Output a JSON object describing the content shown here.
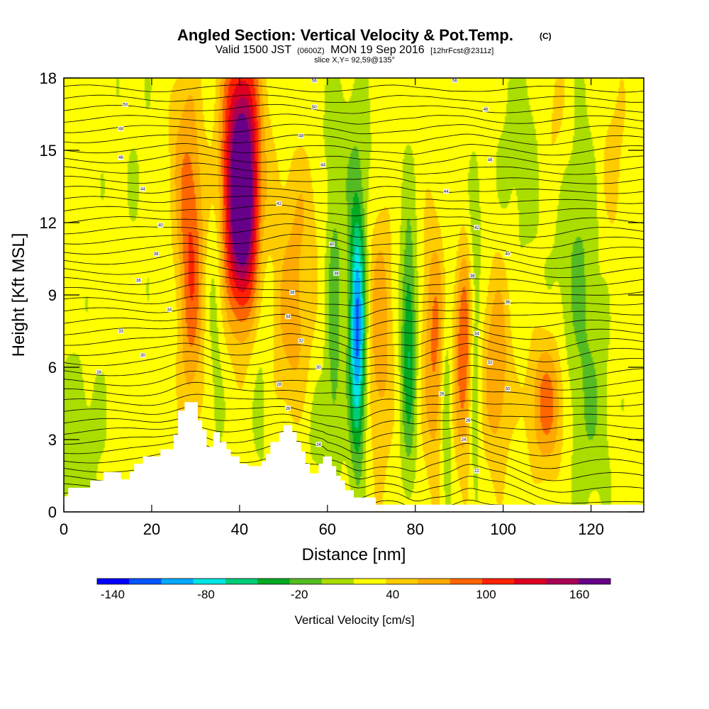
{
  "chart_data": {
    "type": "heatmap",
    "title_main": "Angled Section: Vertical Velocity & Pot.Temp.",
    "title_tag": "(C)",
    "subtitle_a": "Valid 1500 JST",
    "subtitle_utc": "(0600Z)",
    "subtitle_b": "MON 19 Sep 2016",
    "subtitle_fcst": "[12hrFcst@2311z]",
    "slice_label": "slice X,Y= 92,59@135°",
    "xlabel": "Distance [nm]",
    "ylabel": "Height [Kft MSL]",
    "xlim": [
      0,
      132
    ],
    "ylim": [
      0,
      18
    ],
    "x_ticks": [
      0,
      20,
      40,
      60,
      80,
      100,
      120
    ],
    "y_ticks": [
      0,
      3,
      6,
      9,
      12,
      15,
      18
    ],
    "colorbar": {
      "title": "Vertical Velocity [cm/s]",
      "tick_labels": [
        "-140",
        "-80",
        "-20",
        "40",
        "100",
        "160"
      ],
      "tick_values": [
        -140,
        -80,
        -20,
        40,
        100,
        160
      ],
      "range": [
        -150,
        180
      ],
      "colors": [
        "#0000ff",
        "#0055ff",
        "#00aaff",
        "#00e5e5",
        "#00cc77",
        "#00aa22",
        "#55bb22",
        "#aadd00",
        "#ffff00",
        "#ffcc00",
        "#ffaa00",
        "#ff6600",
        "#ff2200",
        "#dd0022",
        "#aa0055",
        "#660088"
      ]
    },
    "velocity_features": [
      {
        "x": 40.5,
        "y": 14.5,
        "sx": 3.2,
        "sy": 3.5,
        "w": 160
      },
      {
        "x": 40.5,
        "y": 11.0,
        "sx": 2.5,
        "sy": 2.5,
        "w": 70
      },
      {
        "x": 29.0,
        "y": 10.5,
        "sx": 2.0,
        "sy": 4.5,
        "w": 75
      },
      {
        "x": 34.5,
        "y": 9.0,
        "sx": 1.3,
        "sy": 5.0,
        "w": -18
      },
      {
        "x": 45.0,
        "y": 9.0,
        "sx": 1.6,
        "sy": 6.0,
        "w": -15
      },
      {
        "x": 52.0,
        "y": 8.0,
        "sx": 3.0,
        "sy": 3.0,
        "w": 45
      },
      {
        "x": 61.5,
        "y": 8.0,
        "sx": 1.3,
        "sy": 4.0,
        "w": -40
      },
      {
        "x": 66.8,
        "y": 7.5,
        "sx": 1.3,
        "sy": 3.5,
        "w": -140
      },
      {
        "x": 72.0,
        "y": 7.5,
        "sx": 2.0,
        "sy": 4.0,
        "w": 50
      },
      {
        "x": 78.5,
        "y": 7.0,
        "sx": 1.2,
        "sy": 3.5,
        "w": -70
      },
      {
        "x": 84.5,
        "y": 7.0,
        "sx": 2.0,
        "sy": 4.0,
        "w": 60
      },
      {
        "x": 87.0,
        "y": 4.5,
        "sx": 0.9,
        "sy": 3.0,
        "w": -45
      },
      {
        "x": 91.0,
        "y": 7.0,
        "sx": 1.5,
        "sy": 3.5,
        "w": 75
      },
      {
        "x": 93.5,
        "y": 6.0,
        "sx": 0.9,
        "sy": 4.0,
        "w": -35
      },
      {
        "x": 98.5,
        "y": 6.0,
        "sx": 2.2,
        "sy": 3.0,
        "w": 55
      },
      {
        "x": 110.0,
        "y": 4.5,
        "sx": 3.0,
        "sy": 2.0,
        "w": 65
      },
      {
        "x": 117.0,
        "y": 10.5,
        "sx": 3.5,
        "sy": 5.0,
        "w": -30
      },
      {
        "x": 105.0,
        "y": 15.0,
        "sx": 4.0,
        "sy": 3.0,
        "w": -18
      },
      {
        "x": 112.0,
        "y": 16.0,
        "sx": 3.0,
        "sy": 2.5,
        "w": 25
      },
      {
        "x": 125.0,
        "y": 14.5,
        "sx": 3.0,
        "sy": 3.0,
        "w": 20
      },
      {
        "x": 64.0,
        "y": 14.5,
        "sx": 6.0,
        "sy": 2.5,
        "w": -18
      },
      {
        "x": 55.0,
        "y": 13.0,
        "sx": 4.0,
        "sy": 2.0,
        "w": 25
      },
      {
        "x": 3.0,
        "y": 3.0,
        "sx": 4.0,
        "sy": 2.5,
        "w": -18
      },
      {
        "x": 18.0,
        "y": 14.0,
        "sx": 6.0,
        "sy": 3.0,
        "w": -5
      },
      {
        "x": 26.0,
        "y": 15.0,
        "sx": 2.0,
        "sy": 3.0,
        "w": 25
      },
      {
        "x": 120.0,
        "y": 4.0,
        "sx": 3.0,
        "sy": 2.5,
        "w": -20
      },
      {
        "x": 90.0,
        "y": 12.0,
        "sx": 4.0,
        "sy": 2.0,
        "w": -15
      },
      {
        "x": 58.0,
        "y": 3.5,
        "sx": 3.0,
        "sy": 1.5,
        "w": -15
      }
    ],
    "terrain_profile": [
      [
        0,
        0.65
      ],
      [
        1,
        0.65
      ],
      [
        1,
        1.0
      ],
      [
        6,
        1.0
      ],
      [
        6,
        1.3
      ],
      [
        9,
        1.3
      ],
      [
        9,
        1.65
      ],
      [
        13,
        1.65
      ],
      [
        13,
        1.35
      ],
      [
        15,
        1.35
      ],
      [
        15,
        1.65
      ],
      [
        16,
        1.65
      ],
      [
        16,
        2.0
      ],
      [
        18,
        2.0
      ],
      [
        18,
        2.3
      ],
      [
        22,
        2.3
      ],
      [
        22,
        2.6
      ],
      [
        25,
        2.6
      ],
      [
        25,
        3.2
      ],
      [
        26,
        3.2
      ],
      [
        26,
        4.2
      ],
      [
        27.5,
        4.2
      ],
      [
        27.5,
        4.55
      ],
      [
        30.5,
        4.55
      ],
      [
        30.5,
        3.8
      ],
      [
        31.5,
        3.8
      ],
      [
        31.5,
        3.4
      ],
      [
        32.5,
        3.4
      ],
      [
        32.5,
        2.7
      ],
      [
        34,
        2.7
      ],
      [
        34,
        3.3
      ],
      [
        35.5,
        3.3
      ],
      [
        35.5,
        2.9
      ],
      [
        37,
        2.9
      ],
      [
        37,
        2.6
      ],
      [
        38,
        2.6
      ],
      [
        38,
        2.3
      ],
      [
        40,
        2.3
      ],
      [
        40,
        2.0
      ],
      [
        42,
        2.0
      ],
      [
        42,
        1.9
      ],
      [
        45,
        1.9
      ],
      [
        45,
        2.1
      ],
      [
        46,
        2.1
      ],
      [
        46,
        2.4
      ],
      [
        47,
        2.4
      ],
      [
        47,
        2.9
      ],
      [
        49,
        2.9
      ],
      [
        49,
        3.3
      ],
      [
        50,
        3.3
      ],
      [
        50,
        3.6
      ],
      [
        52,
        3.6
      ],
      [
        52,
        3.3
      ],
      [
        53,
        3.3
      ],
      [
        53,
        2.9
      ],
      [
        54,
        2.9
      ],
      [
        54,
        2.5
      ],
      [
        55,
        2.5
      ],
      [
        55,
        2.0
      ],
      [
        56,
        2.0
      ],
      [
        56,
        1.6
      ],
      [
        58,
        1.6
      ],
      [
        58,
        2.0
      ],
      [
        59,
        2.0
      ],
      [
        59,
        2.3
      ],
      [
        61,
        2.3
      ],
      [
        61,
        1.9
      ],
      [
        62,
        1.9
      ],
      [
        62,
        1.5
      ],
      [
        63,
        1.5
      ],
      [
        63,
        1.3
      ],
      [
        64,
        1.3
      ],
      [
        64,
        0.9
      ],
      [
        66,
        0.9
      ],
      [
        66,
        0.6
      ],
      [
        71,
        0.6
      ],
      [
        71,
        0.3
      ],
      [
        132,
        0.3
      ]
    ],
    "isentrope_labels": [
      {
        "x": 14,
        "y": 16.9,
        "text": "50"
      },
      {
        "x": 13,
        "y": 15.9,
        "text": "48"
      },
      {
        "x": 13,
        "y": 14.7,
        "text": "46"
      },
      {
        "x": 18,
        "y": 13.4,
        "text": "44"
      },
      {
        "x": 22,
        "y": 11.9,
        "text": "40"
      },
      {
        "x": 21,
        "y": 10.7,
        "text": "38"
      },
      {
        "x": 17,
        "y": 9.6,
        "text": "36"
      },
      {
        "x": 24,
        "y": 8.4,
        "text": "34"
      },
      {
        "x": 13,
        "y": 7.5,
        "text": "33"
      },
      {
        "x": 18,
        "y": 6.5,
        "text": "30"
      },
      {
        "x": 8,
        "y": 5.8,
        "text": "28"
      },
      {
        "x": 57,
        "y": 17.9,
        "text": "56"
      },
      {
        "x": 57,
        "y": 16.8,
        "text": "50"
      },
      {
        "x": 54,
        "y": 15.6,
        "text": "48"
      },
      {
        "x": 59,
        "y": 14.4,
        "text": "44"
      },
      {
        "x": 49,
        "y": 12.8,
        "text": "42"
      },
      {
        "x": 61,
        "y": 11.1,
        "text": "40"
      },
      {
        "x": 62,
        "y": 9.9,
        "text": "38"
      },
      {
        "x": 52,
        "y": 9.1,
        "text": "36"
      },
      {
        "x": 51,
        "y": 8.1,
        "text": "34"
      },
      {
        "x": 54,
        "y": 7.1,
        "text": "32"
      },
      {
        "x": 58,
        "y": 6.0,
        "text": "30"
      },
      {
        "x": 49,
        "y": 5.3,
        "text": "28"
      },
      {
        "x": 51,
        "y": 4.3,
        "text": "26"
      },
      {
        "x": 58,
        "y": 2.8,
        "text": "24"
      },
      {
        "x": 89,
        "y": 17.9,
        "text": "56"
      },
      {
        "x": 96,
        "y": 16.7,
        "text": "48"
      },
      {
        "x": 97,
        "y": 14.6,
        "text": "46"
      },
      {
        "x": 87,
        "y": 13.3,
        "text": "44"
      },
      {
        "x": 94,
        "y": 11.8,
        "text": "42"
      },
      {
        "x": 101,
        "y": 10.7,
        "text": "40"
      },
      {
        "x": 93,
        "y": 9.8,
        "text": "38"
      },
      {
        "x": 101,
        "y": 8.7,
        "text": "36"
      },
      {
        "x": 94,
        "y": 7.4,
        "text": "34"
      },
      {
        "x": 97,
        "y": 6.2,
        "text": "32"
      },
      {
        "x": 101,
        "y": 5.1,
        "text": "30"
      },
      {
        "x": 86,
        "y": 4.9,
        "text": "28"
      },
      {
        "x": 92,
        "y": 3.8,
        "text": "26"
      },
      {
        "x": 91,
        "y": 3.0,
        "text": "24"
      },
      {
        "x": 94,
        "y": 1.7,
        "text": "22"
      }
    ]
  }
}
